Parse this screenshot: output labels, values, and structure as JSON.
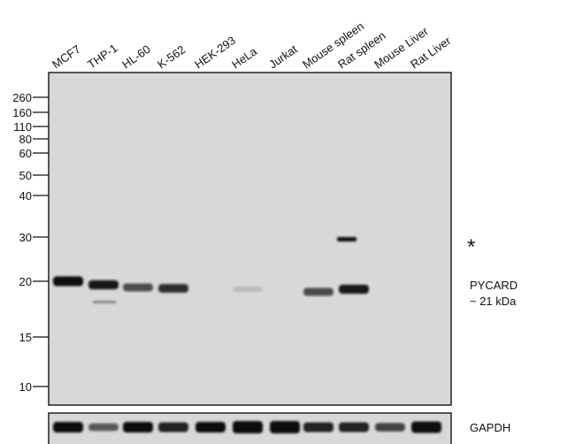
{
  "lanes": [
    "MCF7",
    "THP-1",
    "HL-60",
    "K-562",
    "HEK-293",
    "HeLa",
    "Jurkat",
    "Mouse spleen",
    "Rat spleen",
    "Mouse Liver",
    "Rat Liver"
  ],
  "markers_kda": [
    "260",
    "160",
    "110",
    "80",
    "60",
    "50",
    "40",
    "30",
    "20",
    "15",
    "10"
  ],
  "target_label": "PYCARD",
  "target_size": "~ 21 kDa",
  "nonspecific_marker": "*",
  "loading_control_label": "GAPDH",
  "target_band_intensity": [
    1.0,
    0.85,
    0.6,
    0.75,
    0,
    0.03,
    0,
    0.6,
    0.85,
    0,
    0
  ],
  "loading_band_intensity": [
    0.8,
    0.45,
    0.8,
    0.7,
    0.8,
    1.0,
    1.0,
    0.7,
    0.7,
    0.55,
    0.9
  ],
  "colors": {
    "membrane": "#d8d8d8",
    "band": "#111111"
  }
}
